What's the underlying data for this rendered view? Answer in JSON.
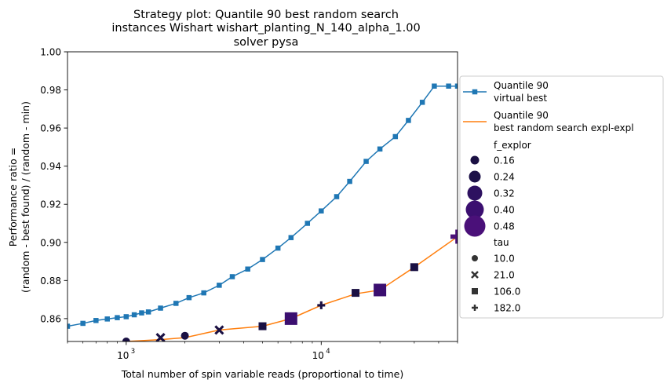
{
  "chart_data": {
    "type": "line",
    "title": [
      "Strategy plot: Quantile 90 best random search",
      "instances Wishart wishart_planting_N_140_alpha_1.00",
      "solver pysa"
    ],
    "xlabel": "Total number of spin variable reads (proportional to time)",
    "ylabel": [
      "Performance ratio =",
      "(random - best found) / (random - min)"
    ],
    "xscale": "log",
    "xlim": [
      500,
      50000
    ],
    "ylim": [
      0.848,
      1.0
    ],
    "x_ticks": [
      {
        "value": 1000,
        "base": "10",
        "exp": "3"
      },
      {
        "value": 10000,
        "base": "10",
        "exp": "4"
      }
    ],
    "y_ticks": [
      0.86,
      0.88,
      0.9,
      0.92,
      0.94,
      0.96,
      0.98,
      1.0
    ],
    "y_tick_labels": [
      "0.86",
      "0.88",
      "0.90",
      "0.92",
      "0.94",
      "0.96",
      "0.98",
      "1.00"
    ],
    "series": [
      {
        "name": "Quantile 90\n virtual best",
        "color": "#1f77b4",
        "marker": "square",
        "x": [
          500,
          600,
          700,
          800,
          900,
          1000,
          1100,
          1200,
          1300,
          1500,
          1800,
          2100,
          2500,
          3000,
          3500,
          4200,
          5000,
          6000,
          7000,
          8500,
          10000,
          12000,
          14000,
          17000,
          20000,
          24000,
          28000,
          33000,
          38000,
          45000,
          50000
        ],
        "y": [
          0.856,
          0.8575,
          0.859,
          0.8598,
          0.8605,
          0.861,
          0.862,
          0.863,
          0.8635,
          0.8655,
          0.868,
          0.871,
          0.8735,
          0.8775,
          0.882,
          0.886,
          0.891,
          0.897,
          0.9025,
          0.91,
          0.9165,
          0.924,
          0.932,
          0.9425,
          0.949,
          0.9555,
          0.964,
          0.9735,
          0.982,
          0.982,
          0.982
        ]
      },
      {
        "name": "Quantile 90\n best random search expl-expl",
        "color": "#ff7f0e",
        "x": [
          1000,
          1500,
          2000,
          3000,
          5000,
          7000,
          10000,
          15000,
          20000,
          30000,
          50000
        ],
        "y": [
          0.848,
          0.849,
          0.85,
          0.854,
          0.856,
          0.86,
          0.867,
          0.873,
          0.875,
          0.887,
          0.903
        ]
      }
    ],
    "scatter_points": [
      {
        "x": 1000,
        "y": 0.848,
        "f_explor": 0.16,
        "tau": 10.0
      },
      {
        "x": 1500,
        "y": 0.85,
        "f_explor": 0.16,
        "tau": 21.0
      },
      {
        "x": 2000,
        "y": 0.851,
        "f_explor": 0.16,
        "tau": 10.0
      },
      {
        "x": 3000,
        "y": 0.854,
        "f_explor": 0.16,
        "tau": 21.0
      },
      {
        "x": 5000,
        "y": 0.856,
        "f_explor": 0.16,
        "tau": 106.0
      },
      {
        "x": 7000,
        "y": 0.86,
        "f_explor": 0.4,
        "tau": 106.0
      },
      {
        "x": 10000,
        "y": 0.867,
        "f_explor": 0.16,
        "tau": 182.0
      },
      {
        "x": 15000,
        "y": 0.8735,
        "f_explor": 0.16,
        "tau": 106.0
      },
      {
        "x": 20000,
        "y": 0.875,
        "f_explor": 0.4,
        "tau": 106.0
      },
      {
        "x": 30000,
        "y": 0.887,
        "f_explor": 0.16,
        "tau": 106.0
      },
      {
        "x": 50000,
        "y": 0.903,
        "f_explor": 0.48,
        "tau": 182.0
      }
    ],
    "legend": {
      "placement": "right-outside",
      "f_explor_title": "f_explor",
      "f_explor": [
        {
          "label": "0.16",
          "color": "#1a1043"
        },
        {
          "label": "0.24",
          "color": "#1c1148"
        },
        {
          "label": "0.32",
          "color": "#2d1160"
        },
        {
          "label": "0.40",
          "color": "#3b0f70"
        },
        {
          "label": "0.48",
          "color": "#4a1079"
        }
      ],
      "tau_title": "tau",
      "tau": [
        {
          "label": "10.0",
          "marker": "circle"
        },
        {
          "label": "21.0",
          "marker": "x"
        },
        {
          "label": "106.0",
          "marker": "square"
        },
        {
          "label": "182.0",
          "marker": "plus"
        }
      ]
    },
    "grid": false
  }
}
